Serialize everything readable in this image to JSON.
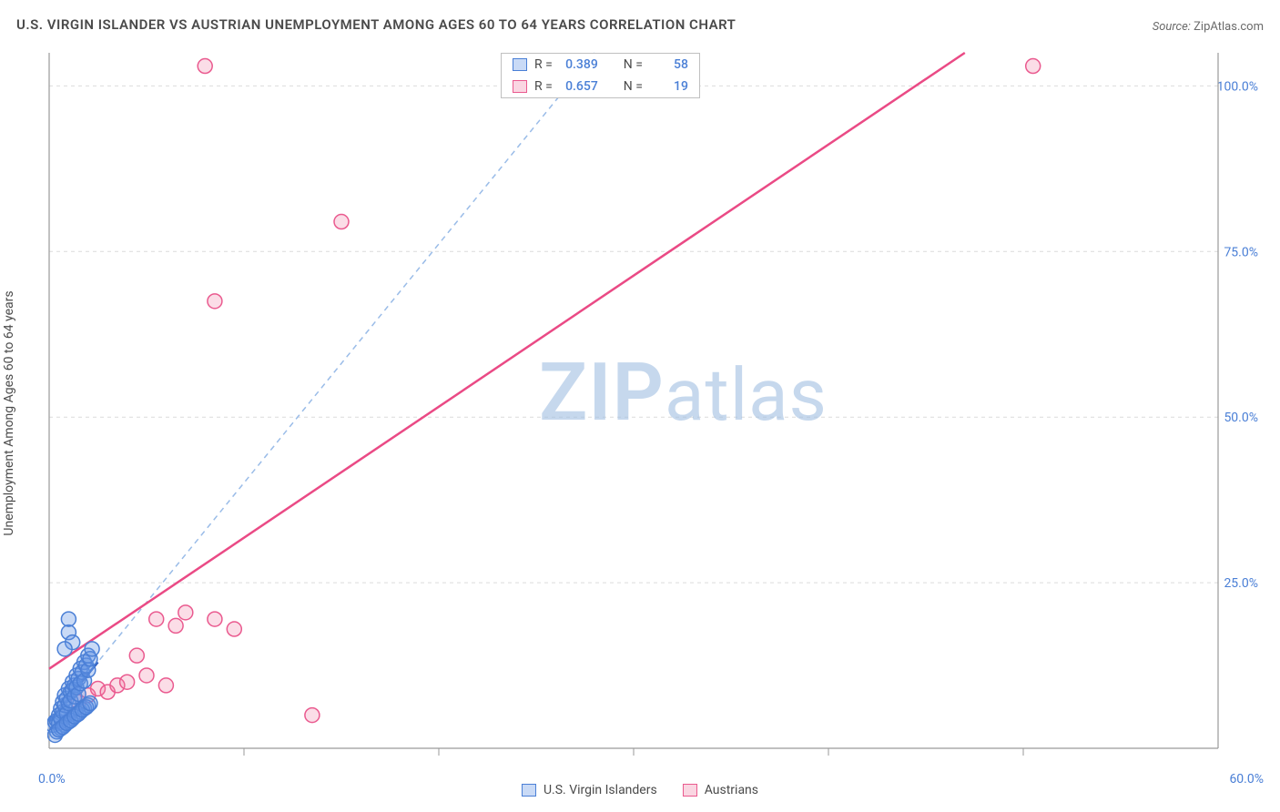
{
  "title": "U.S. VIRGIN ISLANDER VS AUSTRIAN UNEMPLOYMENT AMONG AGES 60 TO 64 YEARS CORRELATION CHART",
  "source_label": "Source:",
  "source_value": "ZipAtlas.com",
  "y_axis_label": "Unemployment Among Ages 60 to 64 years",
  "watermark": {
    "bold": "ZIP",
    "rest": "atlas"
  },
  "chart": {
    "type": "scatter",
    "xlim": [
      0,
      60
    ],
    "ylim": [
      0,
      105
    ],
    "x_ticks": [
      10,
      20,
      30,
      40,
      50
    ],
    "y_ticks": [
      25,
      50,
      75,
      100
    ],
    "x_origin_label": "0.0%",
    "x_max_label": "60.0%",
    "y_tick_labels": [
      "25.0%",
      "50.0%",
      "75.0%",
      "100.0%"
    ],
    "background_color": "#ffffff",
    "grid_color": "#dcdcdc",
    "axis_color": "#9a9a9a",
    "tick_label_color": "#4a7fd6",
    "point_radius": 8,
    "series": [
      {
        "name": "U.S. Virgin Islanders",
        "color_fill": "rgba(100,150,230,0.35)",
        "color_stroke": "#4a7fd6",
        "R": "0.389",
        "N": "58",
        "trend_solid": {
          "x1": 0,
          "y1": 4,
          "x2": 2.5,
          "y2": 13,
          "color": "#2d5cc0",
          "width": 2.5
        },
        "trend_dash": {
          "x1": 0,
          "y1": 4,
          "x2": 28,
          "y2": 105,
          "color": "#9abce8",
          "width": 1.5,
          "dash": "6 5"
        },
        "points": [
          [
            0.2,
            3.5
          ],
          [
            0.3,
            4.0
          ],
          [
            0.4,
            4.2
          ],
          [
            0.5,
            5.0
          ],
          [
            0.5,
            3.8
          ],
          [
            0.6,
            6.0
          ],
          [
            0.6,
            4.5
          ],
          [
            0.7,
            5.5
          ],
          [
            0.7,
            7.0
          ],
          [
            0.8,
            6.5
          ],
          [
            0.8,
            8.0
          ],
          [
            0.9,
            7.5
          ],
          [
            0.9,
            5.2
          ],
          [
            1.0,
            9.0
          ],
          [
            1.0,
            6.8
          ],
          [
            1.1,
            8.5
          ],
          [
            1.1,
            7.2
          ],
          [
            1.2,
            10.0
          ],
          [
            1.2,
            8.8
          ],
          [
            1.3,
            9.5
          ],
          [
            1.3,
            7.8
          ],
          [
            1.4,
            11.0
          ],
          [
            1.4,
            9.2
          ],
          [
            1.5,
            10.5
          ],
          [
            1.5,
            8.2
          ],
          [
            1.6,
            12.0
          ],
          [
            1.6,
            9.8
          ],
          [
            1.7,
            11.5
          ],
          [
            1.8,
            13.0
          ],
          [
            1.8,
            10.2
          ],
          [
            1.9,
            12.5
          ],
          [
            2.0,
            14.0
          ],
          [
            2.0,
            11.8
          ],
          [
            2.1,
            13.5
          ],
          [
            2.2,
            15.0
          ],
          [
            0.4,
            2.5
          ],
          [
            0.6,
            3.0
          ],
          [
            0.8,
            3.5
          ],
          [
            1.0,
            4.0
          ],
          [
            1.2,
            4.5
          ],
          [
            1.4,
            5.0
          ],
          [
            1.6,
            5.5
          ],
          [
            1.8,
            6.0
          ],
          [
            2.0,
            6.5
          ],
          [
            0.3,
            2.0
          ],
          [
            0.5,
            2.8
          ],
          [
            0.7,
            3.2
          ],
          [
            0.9,
            3.8
          ],
          [
            1.1,
            4.2
          ],
          [
            1.3,
            4.8
          ],
          [
            1.5,
            5.2
          ],
          [
            1.7,
            5.8
          ],
          [
            1.9,
            6.2
          ],
          [
            2.1,
            6.8
          ],
          [
            1.0,
            17.5
          ],
          [
            1.0,
            19.5
          ],
          [
            1.2,
            16.0
          ],
          [
            0.8,
            15.0
          ]
        ]
      },
      {
        "name": "Austrians",
        "color_fill": "rgba(240,120,160,0.25)",
        "color_stroke": "#ea5a8f",
        "R": "0.657",
        "N": "19",
        "trend": {
          "x1": 0,
          "y1": 12,
          "x2": 47,
          "y2": 105,
          "color": "#ea4a85",
          "width": 2.5
        },
        "points": [
          [
            1.5,
            7.0
          ],
          [
            2.0,
            8.0
          ],
          [
            2.5,
            9.0
          ],
          [
            3.0,
            8.5
          ],
          [
            3.5,
            9.5
          ],
          [
            4.0,
            10.0
          ],
          [
            4.5,
            14.0
          ],
          [
            5.0,
            11.0
          ],
          [
            5.5,
            19.5
          ],
          [
            6.0,
            9.5
          ],
          [
            6.5,
            18.5
          ],
          [
            7.0,
            20.5
          ],
          [
            8.5,
            19.5
          ],
          [
            9.5,
            18.0
          ],
          [
            13.5,
            5.0
          ],
          [
            8.0,
            103.0
          ],
          [
            15.0,
            79.5
          ],
          [
            8.5,
            67.5
          ],
          [
            50.5,
            103.0
          ]
        ]
      }
    ]
  },
  "legend_bottom": [
    {
      "swatch": "blue",
      "label": "U.S. Virgin Islanders"
    },
    {
      "swatch": "pink",
      "label": "Austrians"
    }
  ]
}
